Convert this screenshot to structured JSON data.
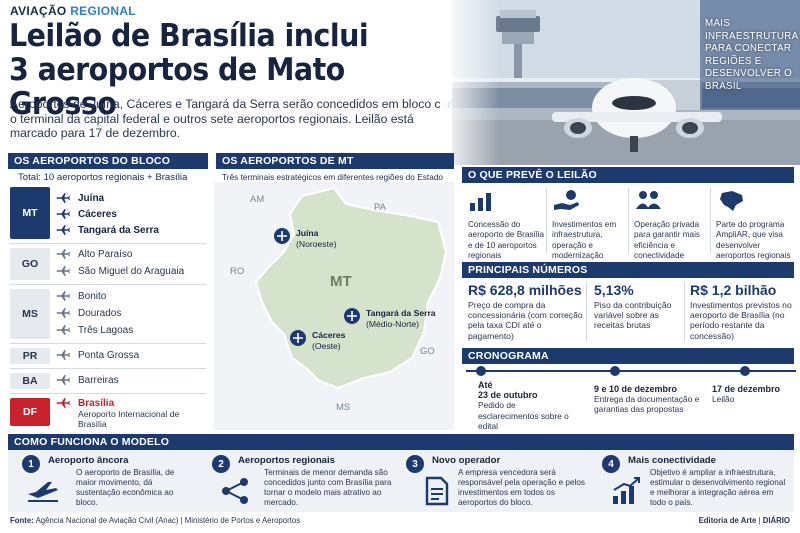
{
  "header": {
    "kicker_a": "AVIAÇÃO",
    "kicker_b": "REGIONAL",
    "title_line1": "Leilão de Brasília inclui",
    "title_line2": "3 aeroportos de Mato Grosso",
    "lead": "Aeroportos de Juína, Cáceres e Tangará da Serra serão concedidos em bloco com o terminal da capital federal e outros sete aeroportos regionais. Leilão está marcado para 17 de dezembro.",
    "photo_caption": "MAIS INFRAESTRUTURA PARA CONECTAR REGIÕES E DESENVOLVER O BRASIL"
  },
  "block": {
    "title": "OS AEROPORTOS DO BLOCO",
    "total": "Total: 10 aeroportos regionais + Brasília",
    "groups": [
      {
        "state": "MT",
        "airports": [
          "Juína",
          "Cáceres",
          "Tangará da Serra"
        ]
      },
      {
        "state": "GO",
        "airports": [
          "Alto Paraíso",
          "São Miguel do Araguaia"
        ]
      },
      {
        "state": "MS",
        "airports": [
          "Bonito",
          "Dourados",
          "Três Lagoas"
        ]
      },
      {
        "state": "PR",
        "airports": [
          "Ponta Grossa"
        ]
      },
      {
        "state": "BA",
        "airports": [
          "Barreiras"
        ]
      },
      {
        "state": "DF",
        "airports": [
          "Brasília"
        ],
        "note": "Aeroporto Internacional de Brasília"
      }
    ]
  },
  "map": {
    "title": "OS AEROPORTOS DE MT",
    "subtitle": "Três terminais estratégicos em diferentes regiões do Estado",
    "state_label": "MT",
    "neighbors": {
      "am": "AM",
      "pa": "PA",
      "ro": "RO",
      "go": "GO",
      "ms": "MS"
    },
    "cities": [
      {
        "name": "Juína",
        "region": "(Noroeste)"
      },
      {
        "name": "Tangará da Serra",
        "region": "(Médio-Norte)"
      },
      {
        "name": "Cáceres",
        "region": "(Oeste)"
      }
    ]
  },
  "preve": {
    "title": "O QUE PREVÊ O LEILÃO",
    "items": [
      {
        "icon": "bar-chart-icon",
        "text": "Concessão do aeroporto de Brasília e de 10 aeroportos regionais"
      },
      {
        "icon": "hand-coin-icon",
        "text": "Investimentos em infraestrutura, operação e modernização"
      },
      {
        "icon": "people-icon",
        "text": "Operação privada para garantir mais eficiência e conectividade"
      },
      {
        "icon": "brazil-map-icon",
        "text": "Parte do programa AmpliAR, que visa desenvolver aeroportos regionais no país"
      }
    ]
  },
  "numbers": {
    "title": "PRINCIPAIS NÚMEROS",
    "items": [
      {
        "value": "R$ 628,8 milhões",
        "text": "Preço de compra da concessionária (com correção pela taxa CDI até o pagamento)"
      },
      {
        "value": "5,13%",
        "text": "Piso da contribuição variável sobre as receitas brutas"
      },
      {
        "value": "R$ 1,2 bilhão",
        "text": "Investimentos previstos no aeroporto de Brasília (no período restante da concessão)"
      }
    ]
  },
  "timeline": {
    "title": "CRONOGRAMA",
    "items": [
      {
        "date_a": "Até",
        "date_b": "23 de outubro",
        "text": "Pedido de esclarecimentos sobre o edital"
      },
      {
        "date_a": "9 e 10 de dezembro",
        "date_b": "",
        "text": "Entrega da documentação e garantias das propostas"
      },
      {
        "date_a": "17 de dezembro",
        "date_b": "",
        "text": "Leilão"
      }
    ]
  },
  "model": {
    "title": "COMO FUNCIONA O MODELO",
    "steps": [
      {
        "n": "1",
        "title": "Aeroporto âncora",
        "text": "O aeroporto de Brasília, de maior movimento, dá sustentação econômica ao bloco.",
        "icon": "plane-takeoff-icon"
      },
      {
        "n": "2",
        "title": "Aeroportos regionais",
        "text": "Terminais de menor demanda são concedidos junto com Brasília para tornar o modelo mais atrativo ao mercado.",
        "icon": "network-icon"
      },
      {
        "n": "3",
        "title": "Novo operador",
        "text": "A empresa vencedora será responsável pela operação e pelos investimentos em todos os aeroportos do bloco.",
        "icon": "document-icon"
      },
      {
        "n": "4",
        "title": "Mais conectividade",
        "text": "Objetivo é ampliar a infraestrutura, estimular o desenvolvimento regional e melhorar a integração aérea em todo o país.",
        "icon": "growth-chart-icon"
      }
    ]
  },
  "footer": {
    "source_label": "Fonte:",
    "source_text": "Agência Nacional de Aviação Civil (Anac) | Ministério de Portos e Aeroportos",
    "credit_a": "Editoria de Arte",
    "credit_b": "DIÁRIO"
  },
  "colors": {
    "navy": "#1d3a6e",
    "accent_blue": "#2f80c8",
    "red": "#c8232c",
    "map_fill": "#d6e3cc"
  }
}
